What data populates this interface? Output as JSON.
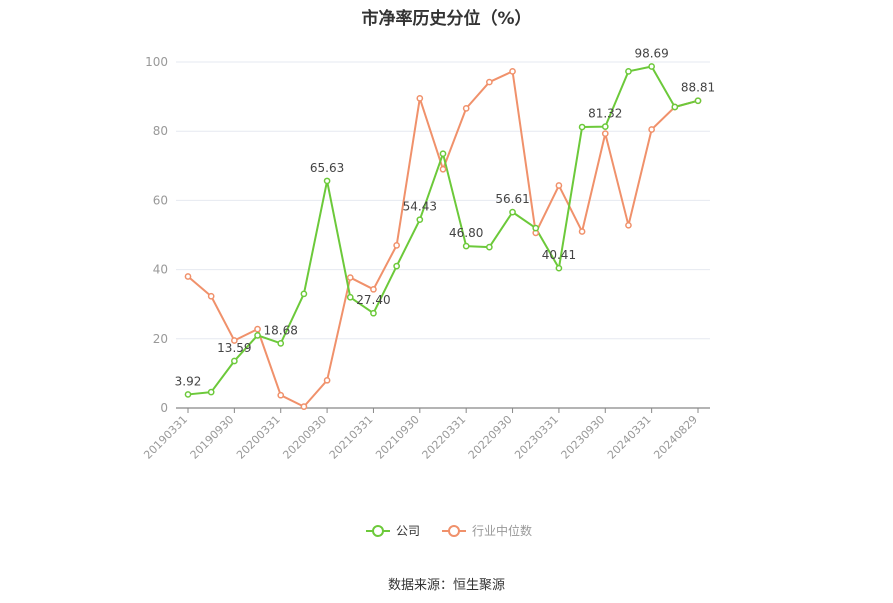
{
  "chart_data": {
    "type": "line",
    "title": "市净率历史分位（%）",
    "source": "数据来源：恒生聚源",
    "ylim": [
      0,
      100
    ],
    "yticks": [
      0,
      20,
      40,
      60,
      80,
      100
    ],
    "x_ticks": [
      "20190331",
      "20190930",
      "20200331",
      "20200930",
      "20210331",
      "20210930",
      "20220331",
      "20220930",
      "20230331",
      "20230930",
      "20240331",
      "20240829"
    ],
    "x": [
      "20190331",
      "20190630",
      "20190930",
      "20191231",
      "20200331",
      "20200630",
      "20200930",
      "20201231",
      "20210331",
      "20210630",
      "20210930",
      "20211231",
      "20220331",
      "20220630",
      "20220930",
      "20221231",
      "20230331",
      "20230630",
      "20230930",
      "20231231",
      "20240331",
      "20240630",
      "20240829"
    ],
    "grid": true,
    "legend_position": "bottom",
    "series": [
      {
        "name": "公司",
        "color": "#6cc93a",
        "values": [
          3.92,
          4.6,
          13.59,
          21.0,
          18.68,
          33.0,
          65.63,
          32.0,
          27.4,
          41.0,
          54.43,
          73.5,
          46.8,
          46.5,
          56.61,
          52.0,
          40.41,
          81.2,
          81.32,
          97.3,
          98.69,
          87.0,
          88.81
        ],
        "labels": {
          "0": "3.92",
          "2": "13.59",
          "4": "18.68",
          "6": "65.63",
          "8": "27.40",
          "10": "54.43",
          "12": "46.80",
          "14": "56.61",
          "16": "40.41",
          "18": "81.32",
          "20": "98.69",
          "22": "88.81"
        }
      },
      {
        "name": "行业中位数",
        "color": "#f0916b",
        "values": [
          38.0,
          32.3,
          19.5,
          22.8,
          3.7,
          0.4,
          8.0,
          37.7,
          34.3,
          47.0,
          89.5,
          69.0,
          86.6,
          94.2,
          97.3,
          50.6,
          64.3,
          51.0,
          79.3,
          52.8,
          80.5,
          87.0,
          88.81
        ]
      }
    ]
  }
}
